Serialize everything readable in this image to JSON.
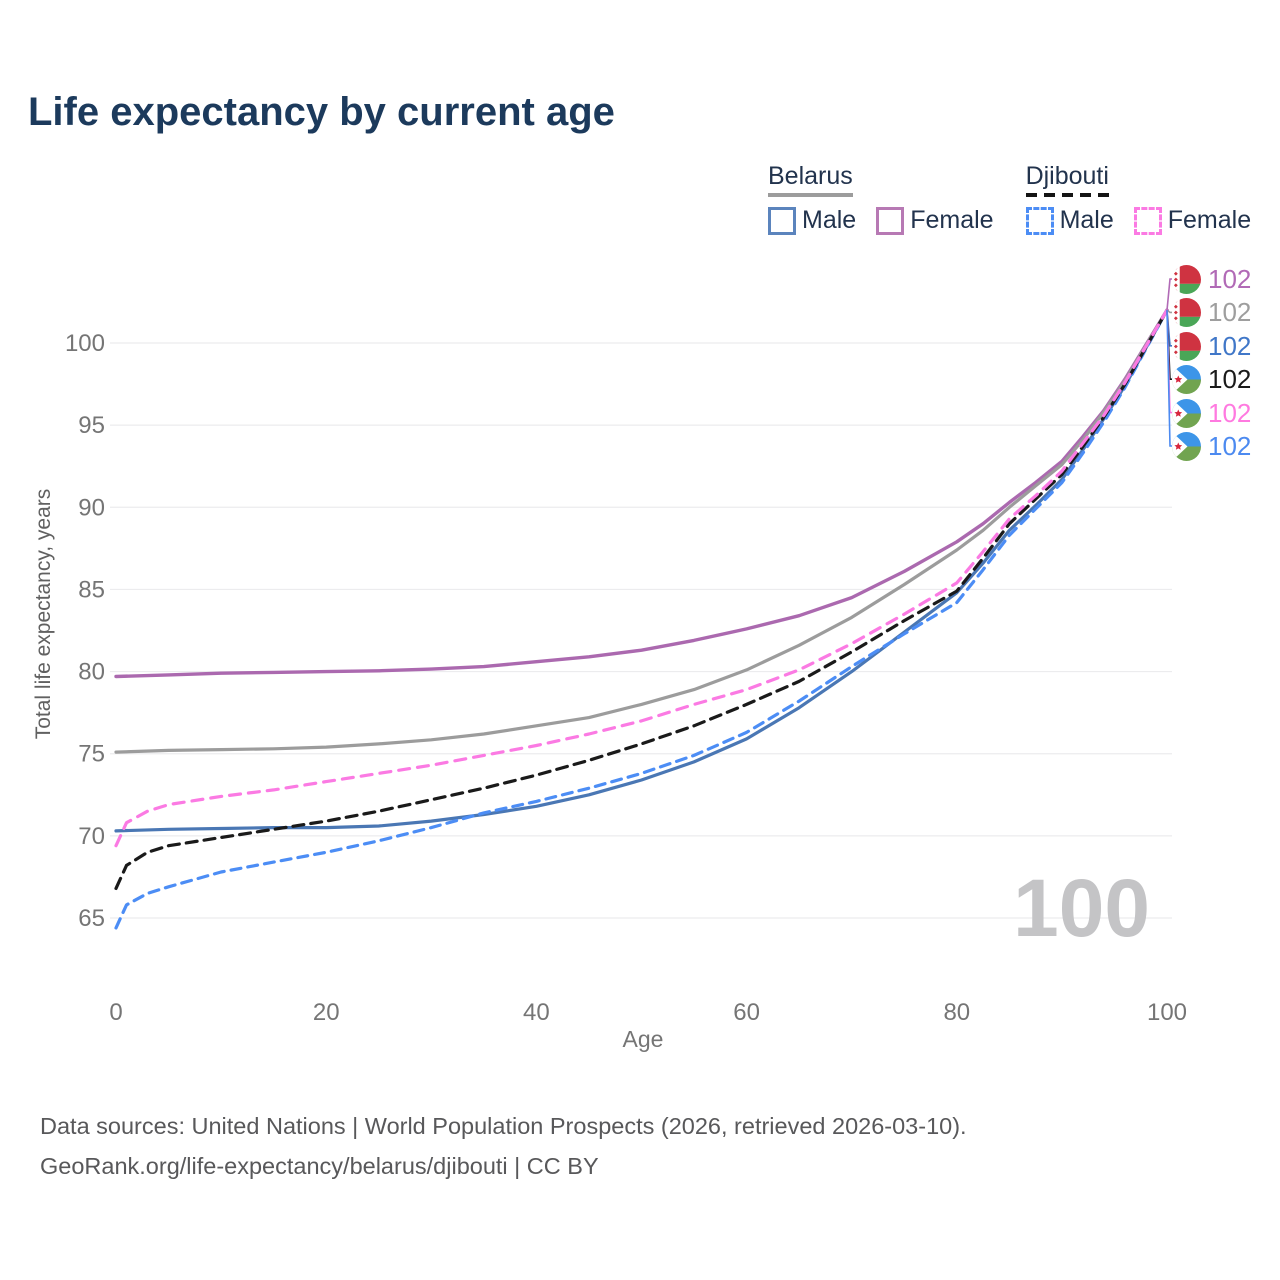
{
  "header": {
    "title": "Life expectancy by current age"
  },
  "legend": {
    "groups": [
      {
        "name": "Belarus",
        "line_style": "solid",
        "line_color": "#9c9c9c",
        "items": [
          {
            "label": "Male",
            "swatch_color": "#5b84bd",
            "swatch_style": "solid"
          },
          {
            "label": "Female",
            "swatch_color": "#b779b4",
            "swatch_style": "solid"
          }
        ]
      },
      {
        "name": "Djibouti",
        "line_style": "dashed",
        "line_color": "#141414",
        "items": [
          {
            "label": "Male",
            "swatch_color": "#4c8df5",
            "swatch_style": "dashed"
          },
          {
            "label": "Female",
            "swatch_color": "#fb7ae3",
            "swatch_style": "dashed"
          }
        ]
      }
    ]
  },
  "chart_data": {
    "type": "line",
    "title": "Life expectancy by current age",
    "xlabel": "Age",
    "ylabel": "Total life expectancy, years",
    "x_ticks": [
      0,
      20,
      40,
      60,
      80,
      100
    ],
    "y_ticks": [
      65,
      70,
      75,
      80,
      85,
      90,
      95,
      100
    ],
    "xlim": [
      0,
      100
    ],
    "ylim": [
      63.5,
      103
    ],
    "grid": "horizontal-only",
    "legend_position": "top-right",
    "series": [
      {
        "name": "Belarus Female",
        "country": "Belarus",
        "sex": "Female",
        "color": "#ab69af",
        "style": "solid",
        "width": 3.4,
        "points": [
          [
            0,
            79.7
          ],
          [
            5,
            79.8
          ],
          [
            10,
            79.9
          ],
          [
            15,
            79.95
          ],
          [
            20,
            80.0
          ],
          [
            25,
            80.05
          ],
          [
            30,
            80.15
          ],
          [
            35,
            80.3
          ],
          [
            40,
            80.6
          ],
          [
            45,
            80.9
          ],
          [
            50,
            81.3
          ],
          [
            55,
            81.9
          ],
          [
            60,
            82.6
          ],
          [
            65,
            83.4
          ],
          [
            70,
            84.5
          ],
          [
            75,
            86.1
          ],
          [
            80,
            87.9
          ],
          [
            82.5,
            89.0
          ],
          [
            85,
            90.3
          ],
          [
            87.5,
            91.5
          ],
          [
            90,
            92.8
          ],
          [
            92,
            94.3
          ],
          [
            94,
            95.9
          ],
          [
            96,
            97.8
          ],
          [
            98,
            99.9
          ],
          [
            100,
            102
          ]
        ]
      },
      {
        "name": "Belarus Both sexes",
        "country": "Belarus",
        "sex": "Both",
        "color": "#9c9c9c",
        "style": "solid",
        "width": 3.2,
        "points": [
          [
            0,
            75.1
          ],
          [
            5,
            75.2
          ],
          [
            10,
            75.25
          ],
          [
            15,
            75.3
          ],
          [
            20,
            75.4
          ],
          [
            25,
            75.6
          ],
          [
            30,
            75.85
          ],
          [
            35,
            76.2
          ],
          [
            40,
            76.7
          ],
          [
            45,
            77.2
          ],
          [
            50,
            78.0
          ],
          [
            55,
            78.9
          ],
          [
            60,
            80.1
          ],
          [
            65,
            81.6
          ],
          [
            70,
            83.3
          ],
          [
            75,
            85.3
          ],
          [
            80,
            87.4
          ],
          [
            82.5,
            88.6
          ],
          [
            85,
            90.0
          ],
          [
            87.5,
            91.3
          ],
          [
            90,
            92.6
          ],
          [
            92,
            94.1
          ],
          [
            94,
            95.8
          ],
          [
            96,
            97.7
          ],
          [
            98,
            99.85
          ],
          [
            100,
            102
          ]
        ]
      },
      {
        "name": "Belarus Male",
        "country": "Belarus",
        "sex": "Male",
        "color": "#4a77b4",
        "style": "solid",
        "width": 3.2,
        "points": [
          [
            0,
            70.3
          ],
          [
            5,
            70.4
          ],
          [
            10,
            70.45
          ],
          [
            15,
            70.5
          ],
          [
            20,
            70.5
          ],
          [
            25,
            70.6
          ],
          [
            30,
            70.9
          ],
          [
            35,
            71.3
          ],
          [
            40,
            71.8
          ],
          [
            45,
            72.5
          ],
          [
            50,
            73.4
          ],
          [
            55,
            74.5
          ],
          [
            60,
            75.9
          ],
          [
            65,
            77.8
          ],
          [
            70,
            80.0
          ],
          [
            75,
            82.4
          ],
          [
            80,
            84.8
          ],
          [
            82.5,
            86.6
          ],
          [
            85,
            88.6
          ],
          [
            87.5,
            90.1
          ],
          [
            90,
            91.7
          ],
          [
            92,
            93.5
          ],
          [
            94,
            95.4
          ],
          [
            96,
            97.4
          ],
          [
            98,
            99.7
          ],
          [
            100,
            102
          ]
        ]
      },
      {
        "name": "Djibouti Male",
        "country": "Djibouti",
        "sex": "Male",
        "color": "#4c8df5",
        "style": "dashed",
        "width": 3.2,
        "dash": "10 7",
        "points": [
          [
            0,
            64.4
          ],
          [
            1,
            65.8
          ],
          [
            3,
            66.5
          ],
          [
            5,
            66.9
          ],
          [
            10,
            67.8
          ],
          [
            15,
            68.4
          ],
          [
            20,
            69.0
          ],
          [
            25,
            69.7
          ],
          [
            30,
            70.5
          ],
          [
            35,
            71.4
          ],
          [
            40,
            72.1
          ],
          [
            45,
            72.9
          ],
          [
            50,
            73.8
          ],
          [
            55,
            74.9
          ],
          [
            60,
            76.3
          ],
          [
            65,
            78.2
          ],
          [
            70,
            80.3
          ],
          [
            75,
            82.3
          ],
          [
            80,
            84.2
          ],
          [
            82.5,
            86.2
          ],
          [
            85,
            88.3
          ],
          [
            87.5,
            89.9
          ],
          [
            90,
            91.5
          ],
          [
            92,
            93.3
          ],
          [
            94,
            95.2
          ],
          [
            96,
            97.3
          ],
          [
            98,
            99.65
          ],
          [
            100,
            102
          ]
        ]
      },
      {
        "name": "Djibouti Both sexes",
        "country": "Djibouti",
        "sex": "Both",
        "color": "#1a1a1a",
        "style": "dashed",
        "width": 3.2,
        "dash": "11 7",
        "points": [
          [
            0,
            66.8
          ],
          [
            1,
            68.2
          ],
          [
            3,
            69.0
          ],
          [
            5,
            69.4
          ],
          [
            10,
            69.9
          ],
          [
            15,
            70.4
          ],
          [
            20,
            70.9
          ],
          [
            25,
            71.5
          ],
          [
            30,
            72.2
          ],
          [
            35,
            72.9
          ],
          [
            40,
            73.7
          ],
          [
            45,
            74.6
          ],
          [
            50,
            75.6
          ],
          [
            55,
            76.7
          ],
          [
            60,
            78.0
          ],
          [
            65,
            79.4
          ],
          [
            70,
            81.2
          ],
          [
            75,
            83.1
          ],
          [
            80,
            84.9
          ],
          [
            82.5,
            86.9
          ],
          [
            85,
            89.0
          ],
          [
            87.5,
            90.5
          ],
          [
            90,
            92.0
          ],
          [
            92,
            93.7
          ],
          [
            94,
            95.5
          ],
          [
            96,
            97.5
          ],
          [
            98,
            99.75
          ],
          [
            100,
            102
          ]
        ]
      },
      {
        "name": "Djibouti Female",
        "country": "Djibouti",
        "sex": "Female",
        "color": "#fb7ae3",
        "style": "dashed",
        "width": 3.2,
        "dash": "11 8",
        "points": [
          [
            0,
            69.4
          ],
          [
            1,
            70.8
          ],
          [
            3,
            71.5
          ],
          [
            5,
            71.9
          ],
          [
            10,
            72.4
          ],
          [
            15,
            72.8
          ],
          [
            20,
            73.3
          ],
          [
            25,
            73.8
          ],
          [
            30,
            74.3
          ],
          [
            35,
            74.9
          ],
          [
            40,
            75.5
          ],
          [
            45,
            76.2
          ],
          [
            50,
            77.0
          ],
          [
            55,
            78.0
          ],
          [
            60,
            78.9
          ],
          [
            65,
            80.1
          ],
          [
            70,
            81.7
          ],
          [
            75,
            83.5
          ],
          [
            80,
            85.4
          ],
          [
            82.5,
            87.3
          ],
          [
            85,
            89.3
          ],
          [
            87.5,
            90.7
          ],
          [
            90,
            92.2
          ],
          [
            92,
            93.9
          ],
          [
            94,
            95.6
          ],
          [
            96,
            97.6
          ],
          [
            98,
            99.8
          ],
          [
            100,
            102
          ]
        ]
      }
    ]
  },
  "endpoint_labels": [
    {
      "country": "Belarus",
      "series": "Belarus Female",
      "value": "102",
      "color": "#b16ab6"
    },
    {
      "country": "Belarus",
      "series": "Belarus Both sexes",
      "value": "102",
      "color": "#9e9e9e"
    },
    {
      "country": "Belarus",
      "series": "Belarus Male",
      "value": "102",
      "color": "#4077c8"
    },
    {
      "country": "Djibouti",
      "series": "Djibouti Both sexes",
      "value": "102",
      "color": "#1a1a1a"
    },
    {
      "country": "Djibouti",
      "series": "Djibouti Female",
      "value": "102",
      "color": "#ff7ae0"
    },
    {
      "country": "Djibouti",
      "series": "Djibouti Male",
      "value": "102",
      "color": "#4c8af0"
    }
  ],
  "watermark": "100",
  "footer": {
    "line1": "Data sources: United Nations | World Population Prospects (2026, retrieved 2026-03-10).",
    "line2": "GeoRank.org/life-expectancy/belarus/djibouti | CC BY"
  }
}
